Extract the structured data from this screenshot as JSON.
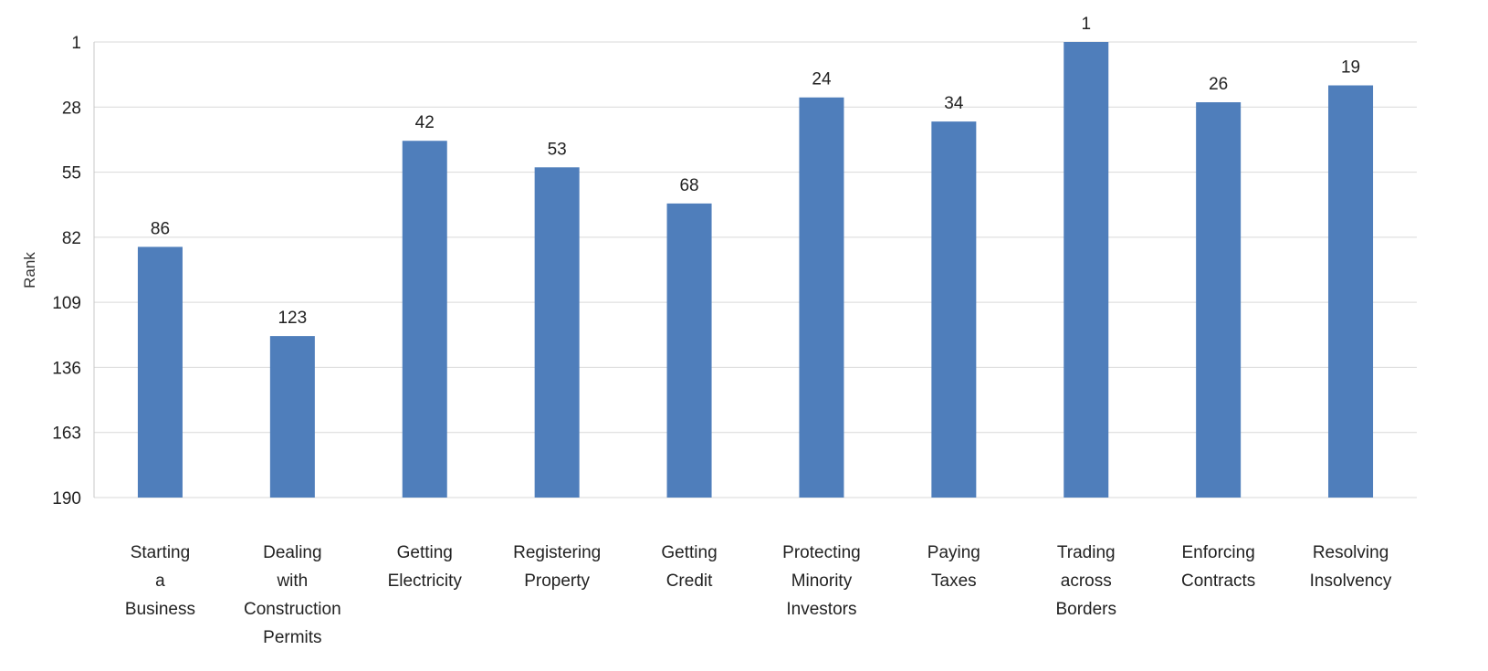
{
  "chart_data": {
    "type": "bar",
    "title": "",
    "xlabel": "",
    "ylabel": "Rank",
    "ylim": [
      190,
      1
    ],
    "y_inverted": true,
    "yticks": [
      "1",
      "28",
      "55",
      "82",
      "109",
      "136",
      "163",
      "190"
    ],
    "grid": true,
    "legend": "none",
    "bar_color": "#4F7EBB",
    "categories": [
      [
        "Starting",
        "a",
        "Business"
      ],
      [
        "Dealing",
        "with",
        "Construction",
        "Permits"
      ],
      [
        "Getting",
        "Electricity"
      ],
      [
        "Registering",
        "Property"
      ],
      [
        "Getting",
        "Credit"
      ],
      [
        "Protecting",
        "Minority",
        "Investors"
      ],
      [
        "Paying",
        "Taxes"
      ],
      [
        "Trading",
        "across",
        "Borders"
      ],
      [
        "Enforcing",
        "Contracts"
      ],
      [
        "Resolving",
        "Insolvency"
      ]
    ],
    "values": [
      86,
      123,
      42,
      53,
      68,
      24,
      34,
      1,
      26,
      19
    ],
    "data_labels": [
      "86",
      "123",
      "42",
      "53",
      "68",
      "24",
      "34",
      "1",
      "26",
      "19"
    ]
  }
}
